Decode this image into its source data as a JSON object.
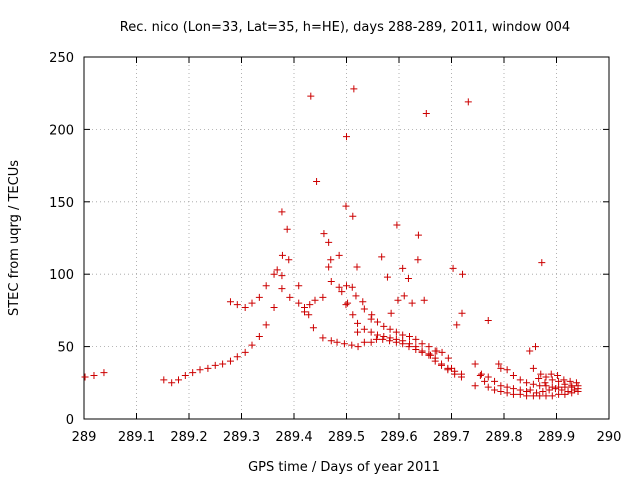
{
  "chart_data": {
    "type": "scatter",
    "title": "Rec. nico (Lon=33, Lat=35, h=HE), days 288-289, 2011, window 004",
    "xlabel": "GPS time / Days of year 2011",
    "ylabel": "STEC from uqrg / TECUs",
    "xlim": [
      289,
      290
    ],
    "ylim": [
      0,
      250
    ],
    "x_ticks": [
      "289",
      "289.1",
      "289.2",
      "289.3",
      "289.4",
      "289.5",
      "289.6",
      "289.7",
      "289.8",
      "289.9",
      "290"
    ],
    "y_ticks": [
      "0",
      "50",
      "100",
      "150",
      "200",
      "250"
    ],
    "grid": true,
    "marker": "+",
    "color": "#cc0000",
    "series": [
      {
        "points": [
          [
            289.002,
            29
          ],
          [
            289.019,
            30
          ],
          [
            289.038,
            32
          ],
          [
            289.152,
            27
          ],
          [
            289.167,
            25
          ],
          [
            289.18,
            27
          ],
          [
            289.193,
            30
          ],
          [
            289.207,
            32
          ],
          [
            289.221,
            34
          ],
          [
            289.236,
            35
          ],
          [
            289.25,
            37
          ],
          [
            289.264,
            38
          ],
          [
            289.279,
            40
          ],
          [
            289.292,
            43
          ],
          [
            289.307,
            46
          ],
          [
            289.32,
            51
          ],
          [
            289.334,
            57
          ],
          [
            289.347,
            65
          ],
          [
            289.362,
            77
          ],
          [
            289.377,
            90
          ],
          [
            289.392,
            84
          ],
          [
            289.279,
            81
          ],
          [
            289.292,
            79
          ],
          [
            289.307,
            77
          ],
          [
            289.32,
            80
          ],
          [
            289.334,
            84
          ],
          [
            289.347,
            92
          ],
          [
            289.362,
            100
          ],
          [
            289.368,
            103
          ],
          [
            289.377,
            99
          ],
          [
            289.39,
            110
          ],
          [
            289.378,
            113
          ],
          [
            289.387,
            131
          ],
          [
            289.377,
            143
          ],
          [
            289.409,
            92
          ],
          [
            289.42,
            74
          ],
          [
            289.428,
            72
          ],
          [
            289.432,
            223
          ],
          [
            289.443,
            164
          ],
          [
            289.457,
            128
          ],
          [
            289.409,
            80
          ],
          [
            289.42,
            77
          ],
          [
            289.43,
            79
          ],
          [
            289.44,
            82
          ],
          [
            289.455,
            84
          ],
          [
            289.437,
            63
          ],
          [
            289.455,
            56
          ],
          [
            289.471,
            54
          ],
          [
            289.482,
            53
          ],
          [
            289.496,
            52
          ],
          [
            289.471,
            95
          ],
          [
            289.486,
            91
          ],
          [
            289.491,
            88
          ],
          [
            289.5,
            92
          ],
          [
            289.466,
            105
          ],
          [
            289.47,
            110
          ],
          [
            289.486,
            113
          ],
          [
            289.466,
            122
          ],
          [
            289.499,
            79
          ],
          [
            289.502,
            80
          ],
          [
            289.511,
            91
          ],
          [
            289.518,
            85
          ],
          [
            289.499,
            147
          ],
          [
            289.512,
            140
          ],
          [
            289.5,
            195
          ],
          [
            289.514,
            228
          ],
          [
            289.51,
            51
          ],
          [
            289.522,
            50
          ],
          [
            289.534,
            53
          ],
          [
            289.547,
            53
          ],
          [
            289.557,
            55
          ],
          [
            289.569,
            55
          ],
          [
            289.582,
            54
          ],
          [
            289.595,
            53
          ],
          [
            289.607,
            52
          ],
          [
            289.619,
            50
          ],
          [
            289.632,
            48
          ],
          [
            289.644,
            46
          ],
          [
            289.657,
            44
          ],
          [
            289.669,
            40
          ],
          [
            289.681,
            37
          ],
          [
            289.693,
            34
          ],
          [
            289.706,
            31
          ],
          [
            289.719,
            29
          ],
          [
            289.512,
            72
          ],
          [
            289.521,
            66
          ],
          [
            289.534,
            62
          ],
          [
            289.547,
            60
          ],
          [
            289.559,
            58
          ],
          [
            289.571,
            57
          ],
          [
            289.583,
            56
          ],
          [
            289.595,
            55
          ],
          [
            289.607,
            54
          ],
          [
            289.62,
            52
          ],
          [
            289.632,
            50
          ],
          [
            289.644,
            47
          ],
          [
            289.657,
            45
          ],
          [
            289.669,
            42
          ],
          [
            289.681,
            38
          ],
          [
            289.693,
            35
          ],
          [
            289.706,
            33
          ],
          [
            289.719,
            31
          ],
          [
            289.521,
            60
          ],
          [
            289.531,
            81
          ],
          [
            289.534,
            76
          ],
          [
            289.547,
            69
          ],
          [
            289.559,
            67
          ],
          [
            289.571,
            64
          ],
          [
            289.583,
            62
          ],
          [
            289.595,
            60
          ],
          [
            289.607,
            58
          ],
          [
            289.62,
            57
          ],
          [
            289.632,
            55
          ],
          [
            289.644,
            52
          ],
          [
            289.657,
            50
          ],
          [
            289.669,
            47
          ],
          [
            289.52,
            105
          ],
          [
            289.548,
            72
          ],
          [
            289.567,
            112
          ],
          [
            289.578,
            98
          ],
          [
            289.585,
            73
          ],
          [
            289.596,
            134
          ],
          [
            289.598,
            82
          ],
          [
            289.607,
            104
          ],
          [
            289.61,
            85
          ],
          [
            289.618,
            97
          ],
          [
            289.625,
            80
          ],
          [
            289.636,
            110
          ],
          [
            289.637,
            127
          ],
          [
            289.648,
            82
          ],
          [
            289.652,
            211
          ],
          [
            289.66,
            44
          ],
          [
            289.672,
            47
          ],
          [
            289.682,
            46
          ],
          [
            289.694,
            42
          ],
          [
            289.7,
            35
          ],
          [
            289.703,
            104
          ],
          [
            289.71,
            65
          ],
          [
            289.72,
            73
          ],
          [
            289.721,
            100
          ],
          [
            289.732,
            219
          ],
          [
            289.745,
            23
          ],
          [
            289.755,
            30
          ],
          [
            289.763,
            26
          ],
          [
            289.77,
            68
          ],
          [
            289.745,
            38
          ],
          [
            289.757,
            31
          ],
          [
            289.77,
            29
          ],
          [
            289.782,
            26
          ],
          [
            289.794,
            23
          ],
          [
            289.806,
            22
          ],
          [
            289.818,
            21
          ],
          [
            289.831,
            20
          ],
          [
            289.843,
            19
          ],
          [
            289.77,
            22
          ],
          [
            289.782,
            20
          ],
          [
            289.794,
            19
          ],
          [
            289.806,
            18
          ],
          [
            289.818,
            17
          ],
          [
            289.831,
            17
          ],
          [
            289.843,
            16
          ],
          [
            289.856,
            16
          ],
          [
            289.868,
            16
          ],
          [
            289.88,
            16
          ],
          [
            289.892,
            16
          ],
          [
            289.904,
            17
          ],
          [
            289.916,
            17
          ],
          [
            289.929,
            18
          ],
          [
            289.941,
            19
          ],
          [
            289.79,
            38
          ],
          [
            289.806,
            34
          ],
          [
            289.794,
            35
          ],
          [
            289.818,
            30
          ],
          [
            289.831,
            27
          ],
          [
            289.843,
            25
          ],
          [
            289.856,
            24
          ],
          [
            289.868,
            23
          ],
          [
            289.88,
            23
          ],
          [
            289.892,
            22
          ],
          [
            289.904,
            22
          ],
          [
            289.916,
            22
          ],
          [
            289.929,
            23
          ],
          [
            289.941,
            23
          ],
          [
            289.849,
            47
          ],
          [
            289.86,
            50
          ],
          [
            289.872,
            108
          ],
          [
            289.856,
            35
          ],
          [
            289.87,
            31
          ],
          [
            289.88,
            29
          ],
          [
            289.892,
            27
          ],
          [
            289.904,
            26
          ],
          [
            289.916,
            24
          ],
          [
            289.929,
            22
          ],
          [
            289.941,
            21
          ],
          [
            289.866,
            28
          ],
          [
            289.878,
            25
          ],
          [
            289.89,
            31
          ],
          [
            289.902,
            30
          ],
          [
            289.914,
            27
          ],
          [
            289.926,
            26
          ],
          [
            289.938,
            25
          ],
          [
            289.85,
            20
          ],
          [
            289.862,
            18
          ],
          [
            289.874,
            19
          ],
          [
            289.886,
            20
          ],
          [
            289.898,
            21
          ],
          [
            289.91,
            20
          ],
          [
            289.922,
            19
          ],
          [
            289.934,
            20
          ]
        ]
      }
    ]
  }
}
